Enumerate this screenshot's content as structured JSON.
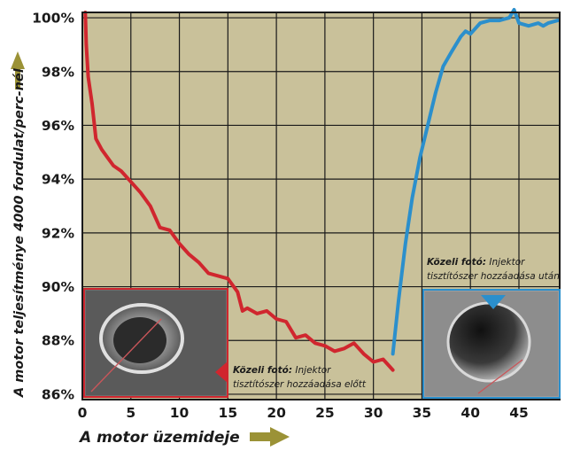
{
  "chart_data": {
    "type": "line",
    "xlabel": "A motor üzemideje",
    "ylabel": "A motor teljesítménye 4000 fordulat/perc-nél",
    "xlim": [
      0,
      49.2
    ],
    "ylim": [
      85.8,
      100.2
    ],
    "x_ticks": [
      "0",
      "5",
      "10",
      "15",
      "20",
      "25",
      "30",
      "35",
      "40",
      "45"
    ],
    "y_ticks": [
      "86%",
      "88%",
      "90%",
      "92%",
      "94%",
      "96%",
      "98%",
      "100%"
    ],
    "grid": true,
    "background_color": "#c9c19a",
    "series": [
      {
        "color": "#d0262e",
        "points": [
          [
            0.3,
            100.2
          ],
          [
            0.4,
            99.0
          ],
          [
            0.6,
            97.8
          ],
          [
            1.0,
            96.8
          ],
          [
            1.4,
            95.5
          ],
          [
            2.0,
            95.1
          ],
          [
            2.6,
            94.8
          ],
          [
            3.2,
            94.5
          ],
          [
            4.0,
            94.3
          ],
          [
            5.0,
            93.9
          ],
          [
            6.0,
            93.5
          ],
          [
            7.0,
            93.0
          ],
          [
            8.0,
            92.2
          ],
          [
            9.0,
            92.1
          ],
          [
            10.0,
            91.6
          ],
          [
            11.0,
            91.2
          ],
          [
            12.0,
            90.9
          ],
          [
            13.0,
            90.5
          ],
          [
            14.0,
            90.4
          ],
          [
            15.0,
            90.3
          ],
          [
            16.0,
            89.8
          ],
          [
            16.5,
            89.1
          ],
          [
            17.0,
            89.2
          ],
          [
            18.0,
            89.0
          ],
          [
            19.0,
            89.1
          ],
          [
            20.0,
            88.8
          ],
          [
            21.0,
            88.7
          ],
          [
            22.0,
            88.1
          ],
          [
            23.0,
            88.2
          ],
          [
            24.0,
            87.9
          ],
          [
            25.0,
            87.8
          ],
          [
            26.0,
            87.6
          ],
          [
            27.0,
            87.7
          ],
          [
            28.0,
            87.9
          ],
          [
            29.0,
            87.5
          ],
          [
            30.0,
            87.2
          ],
          [
            31.0,
            87.3
          ],
          [
            32.0,
            86.9
          ]
        ]
      },
      {
        "color": "#2b8fcc",
        "points": [
          [
            32.0,
            87.5
          ],
          [
            32.6,
            89.5
          ],
          [
            33.3,
            91.6
          ],
          [
            34.0,
            93.3
          ],
          [
            34.8,
            94.8
          ],
          [
            35.6,
            96.0
          ],
          [
            36.4,
            97.2
          ],
          [
            37.2,
            98.2
          ],
          [
            38.0,
            98.7
          ],
          [
            39.0,
            99.3
          ],
          [
            39.5,
            99.5
          ],
          [
            40.0,
            99.4
          ],
          [
            41.0,
            99.8
          ],
          [
            42.0,
            99.9
          ],
          [
            43.0,
            99.9
          ],
          [
            44.0,
            100.0
          ],
          [
            44.5,
            100.3
          ],
          [
            45.0,
            99.8
          ],
          [
            46.0,
            99.7
          ],
          [
            47.0,
            99.8
          ],
          [
            47.5,
            99.7
          ],
          [
            48.0,
            99.8
          ],
          [
            49.0,
            99.9
          ]
        ]
      }
    ]
  },
  "captions": {
    "before": {
      "bold": "Közeli fotó:",
      "line1": " Injektor",
      "line2": "tisztítószer hozzáadása előtt",
      "frame_color": "#d0262e"
    },
    "after": {
      "bold": "Közeli fotó:",
      "line1": " Injektor",
      "line2": "tisztítószer hozzáadása után",
      "frame_color": "#2b8fcc"
    }
  }
}
